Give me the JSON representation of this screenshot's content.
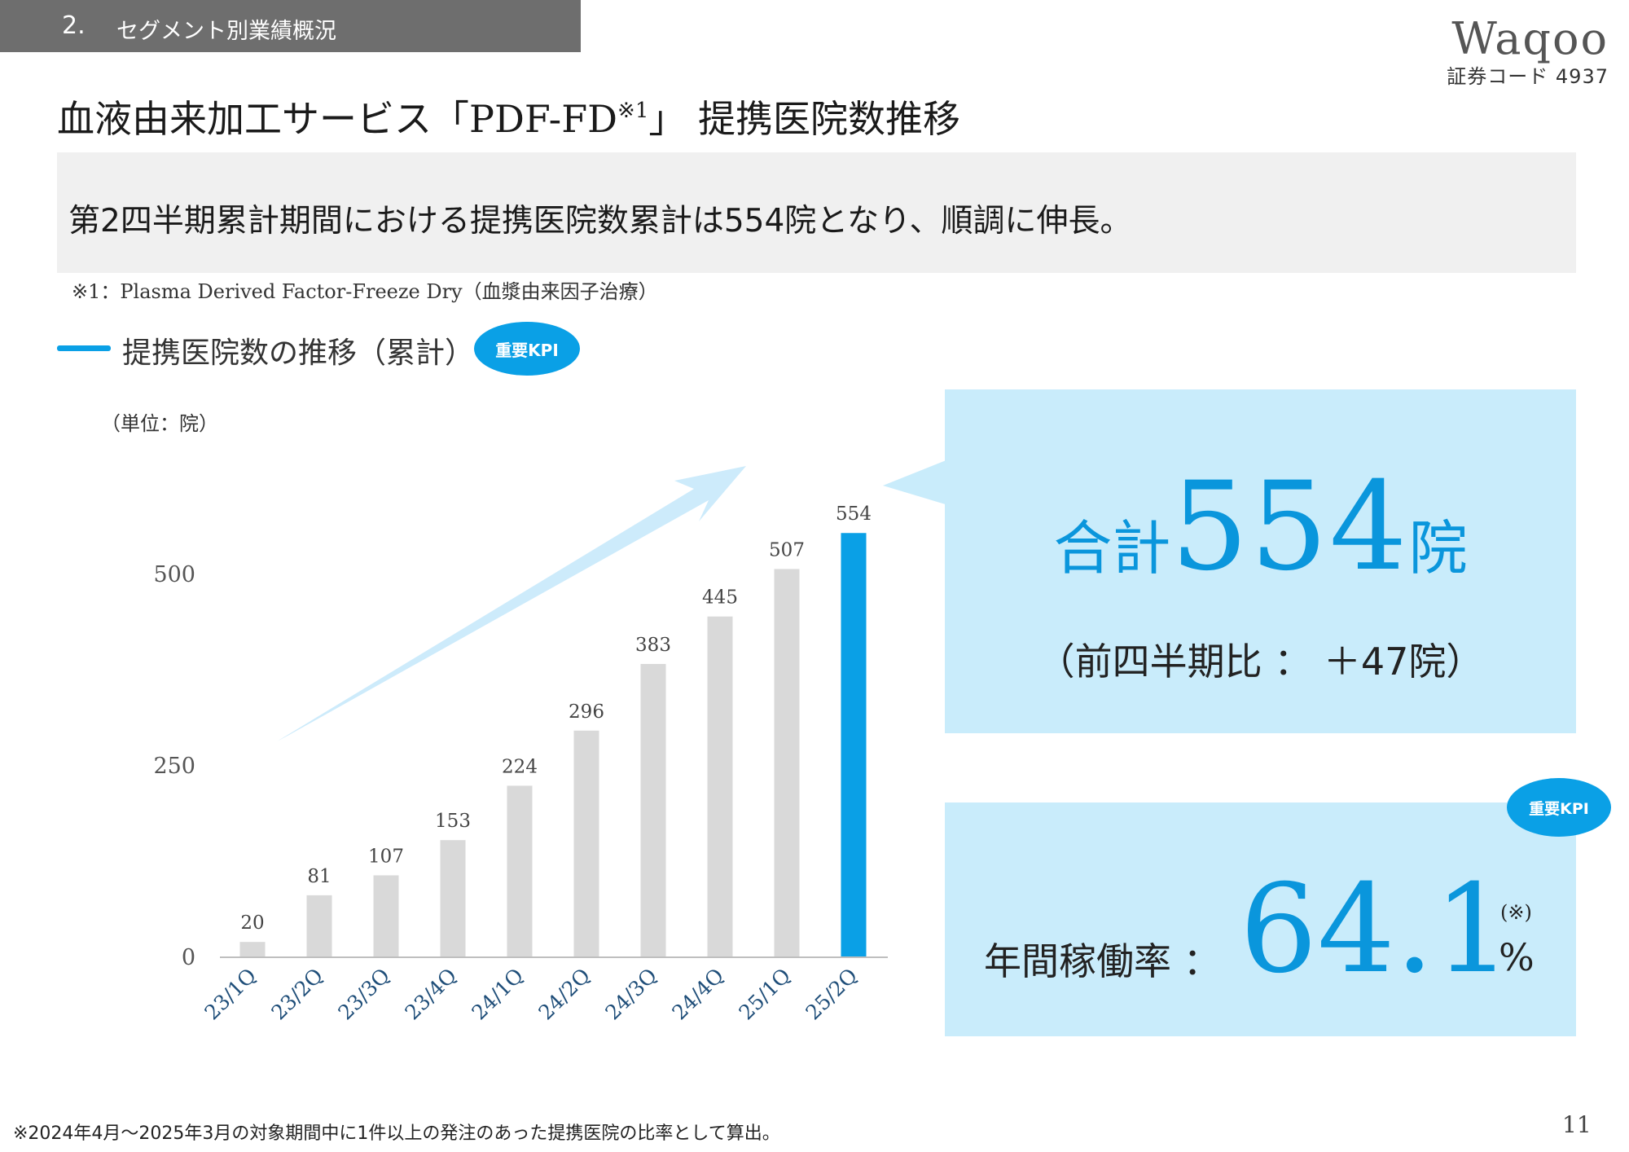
{
  "section": {
    "number": "2.",
    "title": "セグメント別業績概況"
  },
  "logo": {
    "name": "Waqoo",
    "stock_code": "証券コード 4937"
  },
  "title": {
    "main": "血液由来加工サービス「PDF-FD",
    "sup": "※1",
    "rest": "」 提携医院数推移"
  },
  "summary": "第2四半期累計期間における提携医院数累計は554院となり、順調に伸長。",
  "footnote_1": "※1：Plasma Derived Factor-Freeze Dry（血漿由来因子治療）",
  "chart_heading": "提携医院数の推移（累計）",
  "kpi_badge": "重要KPI",
  "colors": {
    "accent": "#0aa0e6",
    "bar_gray": "#d9d9d9",
    "panel_bg": "#c9ecfb",
    "arrow": "#cdebfb"
  },
  "chart_data": {
    "type": "bar",
    "unit_label": "（単位：院）",
    "categories": [
      "23/1Q",
      "23/2Q",
      "23/3Q",
      "23/4Q",
      "24/1Q",
      "24/2Q",
      "24/3Q",
      "24/4Q",
      "25/1Q",
      "25/2Q"
    ],
    "values": [
      20,
      81,
      107,
      153,
      224,
      296,
      383,
      445,
      507,
      554
    ],
    "highlight_index": 9,
    "yticks": [
      0,
      250,
      500
    ],
    "ylim": [
      0,
      600
    ],
    "grid": false,
    "trend_arrow": true
  },
  "total_panel": {
    "prefix": "合計",
    "value": "554",
    "suffix": "院",
    "qoq": "（前四半期比 ： ＋47院）"
  },
  "rate_panel": {
    "label": "年間稼働率 ：",
    "value": "64.1",
    "note": "(※)",
    "unit": "%"
  },
  "footnote_2": "※2024年4月～2025年3月の対象期間中に1件以上の発注のあった提携医院の比率として算出。",
  "page_number": "11"
}
